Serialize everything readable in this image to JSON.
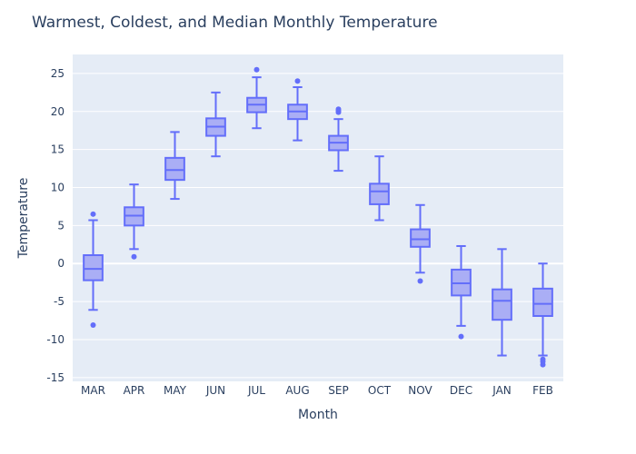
{
  "chart_data": {
    "type": "box",
    "title": "Warmest, Coldest, and Median Monthly Temperature",
    "xlabel": "Month",
    "ylabel": "Temperature",
    "ylim": [
      -15.5,
      27.5
    ],
    "yticks": [
      25,
      20,
      15,
      10,
      5,
      0,
      -5,
      -10,
      -15
    ],
    "categories": [
      "MAR",
      "APR",
      "MAY",
      "JUN",
      "JUL",
      "AUG",
      "SEP",
      "OCT",
      "NOV",
      "DEC",
      "JAN",
      "FEB"
    ],
    "boxes": [
      {
        "min": -6.1,
        "q1": -2.2,
        "median": -0.7,
        "q3": 1.1,
        "max": 5.7,
        "outliers": [
          6.5,
          -8.1
        ]
      },
      {
        "min": 1.9,
        "q1": 5.0,
        "median": 6.3,
        "q3": 7.4,
        "max": 10.4,
        "outliers": [
          0.9
        ]
      },
      {
        "min": 8.5,
        "q1": 11.0,
        "median": 12.3,
        "q3": 13.9,
        "max": 17.3,
        "outliers": []
      },
      {
        "min": 14.1,
        "q1": 16.8,
        "median": 18.0,
        "q3": 19.1,
        "max": 22.5,
        "outliers": []
      },
      {
        "min": 17.8,
        "q1": 19.9,
        "median": 20.9,
        "q3": 21.8,
        "max": 24.5,
        "outliers": [
          25.5
        ]
      },
      {
        "min": 16.2,
        "q1": 19.0,
        "median": 20.0,
        "q3": 20.9,
        "max": 23.2,
        "outliers": [
          24.0
        ]
      },
      {
        "min": 12.2,
        "q1": 14.9,
        "median": 15.9,
        "q3": 16.8,
        "max": 19.0,
        "outliers": [
          19.9,
          20.1,
          20.3
        ]
      },
      {
        "min": 5.7,
        "q1": 7.8,
        "median": 9.5,
        "q3": 10.5,
        "max": 14.1,
        "outliers": []
      },
      {
        "min": -1.2,
        "q1": 2.2,
        "median": 3.2,
        "q3": 4.5,
        "max": 7.7,
        "outliers": [
          -2.3
        ]
      },
      {
        "min": -8.2,
        "q1": -4.2,
        "median": -2.6,
        "q3": -0.8,
        "max": 2.3,
        "outliers": [
          -9.6
        ]
      },
      {
        "min": -12.1,
        "q1": -7.4,
        "median": -4.9,
        "q3": -3.4,
        "max": 1.9,
        "outliers": []
      },
      {
        "min": -12.1,
        "q1": -6.9,
        "median": -5.3,
        "q3": -3.3,
        "max": 0.0,
        "outliers": [
          -12.6,
          -12.9,
          -13.3
        ]
      }
    ],
    "grid": true,
    "colors": {
      "plot_bg": "#e5ecf6",
      "grid": "#ffffff",
      "box_line": "#636efa",
      "box_fill": "#aaaef5",
      "text": "#2a3f5f"
    }
  }
}
